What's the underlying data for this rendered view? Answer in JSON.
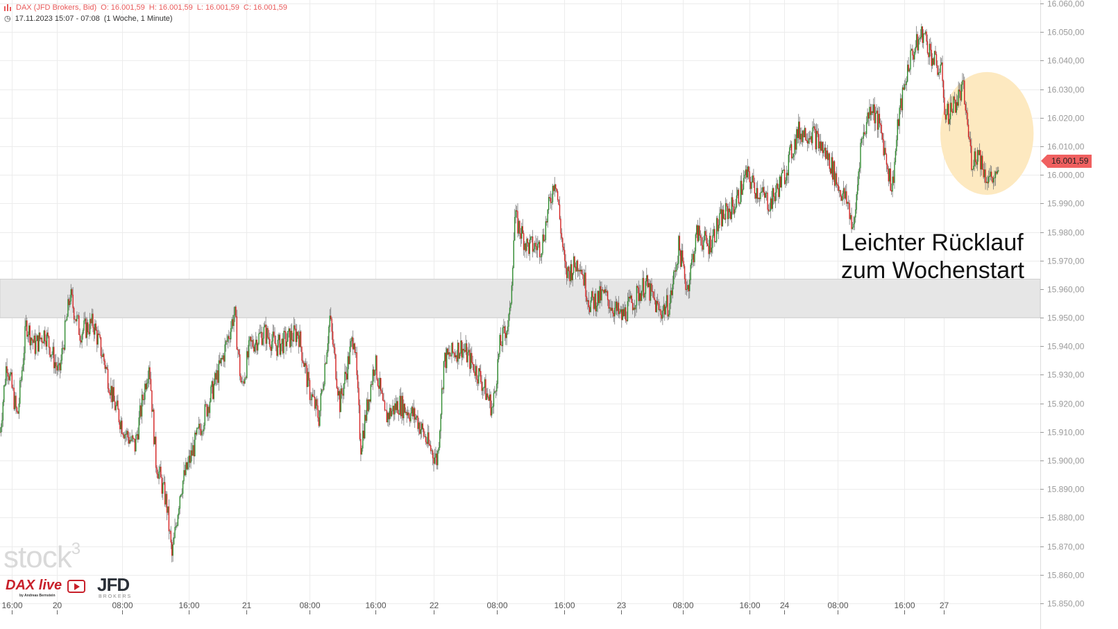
{
  "header": {
    "symbol": "DAX (JFD Brokers, Bid)",
    "open": "O: 16.001,59",
    "high": "H: 16.001,59",
    "low": "L: 16.001,59",
    "close": "C: 16.001,59",
    "range": "17.11.2023 15:07 - 07:08",
    "period": "(1 Woche, 1 Minute)"
  },
  "annotation": [
    "Leichter Rücklauf",
    "zum Wochenstart"
  ],
  "last_price_label": "16.001,59",
  "logos": {
    "watermark": "stock3",
    "brand": "DAX live",
    "brand_sub": "by Andreas Bernstein",
    "broker": "JFD",
    "broker_sub": "BROKERS"
  },
  "colors": {
    "up": "#2e8b2e",
    "down": "#d42020",
    "band": "#e6e6e6",
    "highlight": "#fde9c0",
    "price_tag": "#f06060"
  },
  "chart_data": {
    "type": "candlestick",
    "title": "DAX (JFD Brokers, Bid)",
    "xunit": "chart hours from first 16:00 tick",
    "xlim": [
      -1.4,
      123.5
    ],
    "ylim": [
      15850,
      16060
    ],
    "grid": true,
    "y_ticks": [
      "15.850,00",
      "15.860,00",
      "15.870,00",
      "15.880,00",
      "15.890,00",
      "15.900,00",
      "15.910,00",
      "15.920,00",
      "15.930,00",
      "15.940,00",
      "15.950,00",
      "15.960,00",
      "15.970,00",
      "15.980,00",
      "15.990,00",
      "16.000,00",
      "16.010,00",
      "16.020,00",
      "16.030,00",
      "16.040,00",
      "16.050,00",
      "16.060,00"
    ],
    "x_ticks": [
      {
        "t": 0,
        "label": "16:00"
      },
      {
        "t": 5.4,
        "label": "20"
      },
      {
        "t": 13.3,
        "label": "08:00"
      },
      {
        "t": 21.3,
        "label": "16:00"
      },
      {
        "t": 28.2,
        "label": "21"
      },
      {
        "t": 35.75,
        "label": "08:00"
      },
      {
        "t": 43.7,
        "label": "16:00"
      },
      {
        "t": 50.7,
        "label": "22"
      },
      {
        "t": 58.3,
        "label": "08:00"
      },
      {
        "t": 66.3,
        "label": "16:00"
      },
      {
        "t": 73.2,
        "label": "23"
      },
      {
        "t": 80.6,
        "label": "08:00"
      },
      {
        "t": 88.6,
        "label": "16:00"
      },
      {
        "t": 92.75,
        "label": "24"
      },
      {
        "t": 99.2,
        "label": "08:00"
      },
      {
        "t": 107.2,
        "label": "16:00"
      },
      {
        "t": 111.9,
        "label": "27"
      }
    ],
    "support_zone": [
      15950,
      15963.5
    ],
    "highlight_region": {
      "t": [
        111.5,
        122.7
      ],
      "price": [
        15993,
        16036
      ]
    },
    "last_price": 16001.59,
    "path": [
      [
        -1.4,
        15910
      ],
      [
        -0.6,
        15935
      ],
      [
        0.7,
        15915
      ],
      [
        1.75,
        15948
      ],
      [
        2.75,
        15940
      ],
      [
        4,
        15945
      ],
      [
        5.7,
        15930
      ],
      [
        7,
        15958
      ],
      [
        8.2,
        15945
      ],
      [
        9.8,
        15948
      ],
      [
        11.1,
        15935
      ],
      [
        12.3,
        15920
      ],
      [
        13.6,
        15910
      ],
      [
        14.8,
        15905
      ],
      [
        16.5,
        15935
      ],
      [
        17.3,
        15900
      ],
      [
        18.6,
        15885
      ],
      [
        19.25,
        15866
      ],
      [
        20.25,
        15890
      ],
      [
        21.9,
        15905
      ],
      [
        23.6,
        15920
      ],
      [
        25.25,
        15935
      ],
      [
        26.75,
        15952
      ],
      [
        27.6,
        15925
      ],
      [
        28.6,
        15940
      ],
      [
        30.25,
        15945
      ],
      [
        31.9,
        15940
      ],
      [
        34.4,
        15945
      ],
      [
        35.7,
        15925
      ],
      [
        36.9,
        15915
      ],
      [
        38.2,
        15950
      ],
      [
        39.4,
        15920
      ],
      [
        41.1,
        15945
      ],
      [
        41.9,
        15905
      ],
      [
        43.6,
        15935
      ],
      [
        44.8,
        15915
      ],
      [
        46.5,
        15920
      ],
      [
        48.6,
        15915
      ],
      [
        50.1,
        15905
      ],
      [
        51.1,
        15900
      ],
      [
        51.9,
        15935
      ],
      [
        54,
        15940
      ],
      [
        56.1,
        15930
      ],
      [
        57.75,
        15918
      ],
      [
        58.6,
        15940
      ],
      [
        59.8,
        15950
      ],
      [
        60.4,
        15985
      ],
      [
        61.9,
        15975
      ],
      [
        63.6,
        15975
      ],
      [
        65.25,
        16000
      ],
      [
        66.5,
        15965
      ],
      [
        68.2,
        15970
      ],
      [
        69.4,
        15955
      ],
      [
        71.1,
        15958
      ],
      [
        73.2,
        15950
      ],
      [
        74.4,
        15955
      ],
      [
        76.1,
        15962
      ],
      [
        77.75,
        15952
      ],
      [
        79,
        15955
      ],
      [
        80.1,
        15975
      ],
      [
        81.1,
        15960
      ],
      [
        82.3,
        15980
      ],
      [
        83.6,
        15975
      ],
      [
        85.25,
        15985
      ],
      [
        86.9,
        15990
      ],
      [
        88.2,
        16000
      ],
      [
        89.4,
        15995
      ],
      [
        91.1,
        15990
      ],
      [
        92.75,
        16000
      ],
      [
        94.4,
        16015
      ],
      [
        96.1,
        16015
      ],
      [
        98.2,
        16005
      ],
      [
        99.4,
        15995
      ],
      [
        100.4,
        15990
      ],
      [
        101.1,
        15980
      ],
      [
        101.9,
        16010
      ],
      [
        103.2,
        16025
      ],
      [
        104.4,
        16015
      ],
      [
        105.7,
        15995
      ],
      [
        106.5,
        16020
      ],
      [
        107.75,
        16040
      ],
      [
        109.4,
        16050
      ],
      [
        110.7,
        16040
      ],
      [
        111.75,
        16035
      ],
      [
        112.1,
        16020
      ],
      [
        113.2,
        16025
      ],
      [
        114.25,
        16030
      ],
      [
        115.25,
        16005
      ],
      [
        116.1,
        16008
      ],
      [
        116.9,
        16000
      ],
      [
        118.3,
        15998
      ],
      [
        118.6,
        16001.59
      ]
    ]
  }
}
